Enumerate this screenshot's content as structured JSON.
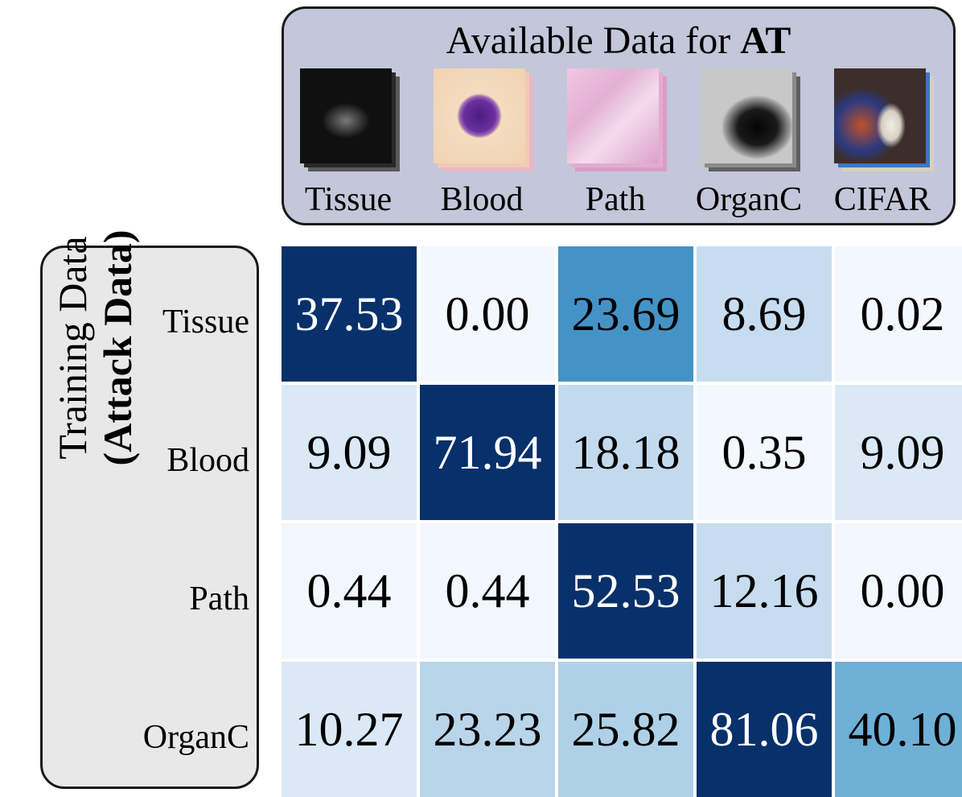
{
  "header": {
    "title_prefix": "Available Data for ",
    "title_bold": "AT"
  },
  "datasets": [
    {
      "label": "Tissue",
      "thumbnail": "tissue-microscopy-thumbnail",
      "colors": [
        "#1a1a1a",
        "#3a3a3a",
        "#7a7a7a"
      ]
    },
    {
      "label": "Blood",
      "thumbnail": "blood-cell-thumbnail",
      "colors": [
        "#f4dcc0",
        "#e8c9a8",
        "#5b2a8f"
      ]
    },
    {
      "label": "Path",
      "thumbnail": "pathology-tissue-thumbnail",
      "colors": [
        "#e8b9d8",
        "#d9a3c8",
        "#f1dceb"
      ]
    },
    {
      "label": "OrganC",
      "thumbnail": "organ-ct-thumbnail",
      "colors": [
        "#a0a0a0",
        "#555555",
        "#0a0a0a"
      ]
    },
    {
      "label": "CIFAR",
      "thumbnail": "cifar-dog-thumbnail",
      "colors": [
        "#3c2e2a",
        "#d9d1c4",
        "#8a4a2a"
      ]
    }
  ],
  "side": {
    "line1": "Training Data",
    "line2": "(Attack Data)"
  },
  "colors": {
    "panel_background": "#c3c7d9",
    "side_background": "#e8e8e8",
    "colormap": "Blues",
    "dark_text_threshold": 30
  },
  "chart_data": {
    "type": "heatmap",
    "columns": [
      "Tissue",
      "Blood",
      "Path",
      "OrganC",
      "CIFAR"
    ],
    "rows": [
      "Tissue",
      "Blood",
      "Path",
      "OrganC"
    ],
    "values": [
      [
        37.53,
        0.0,
        23.69,
        8.69,
        0.02
      ],
      [
        9.09,
        71.94,
        18.18,
        0.35,
        9.09
      ],
      [
        0.44,
        0.44,
        52.53,
        12.16,
        0.0
      ],
      [
        10.27,
        23.23,
        25.82,
        81.06,
        40.1
      ]
    ],
    "cell_labels": [
      [
        "37.53",
        "0.00",
        "23.69",
        "8.69",
        "0.02"
      ],
      [
        "9.09",
        "71.94",
        "18.18",
        "0.35",
        "9.09"
      ],
      [
        "0.44",
        "0.44",
        "52.53",
        "12.16",
        "0.00"
      ],
      [
        "10.27",
        "23.23",
        "25.82",
        "81.06",
        "40.10"
      ]
    ],
    "ylabel": "Training Data (Attack Data)",
    "title": "Available Data for AT",
    "color_scale": "per-row Blues"
  }
}
